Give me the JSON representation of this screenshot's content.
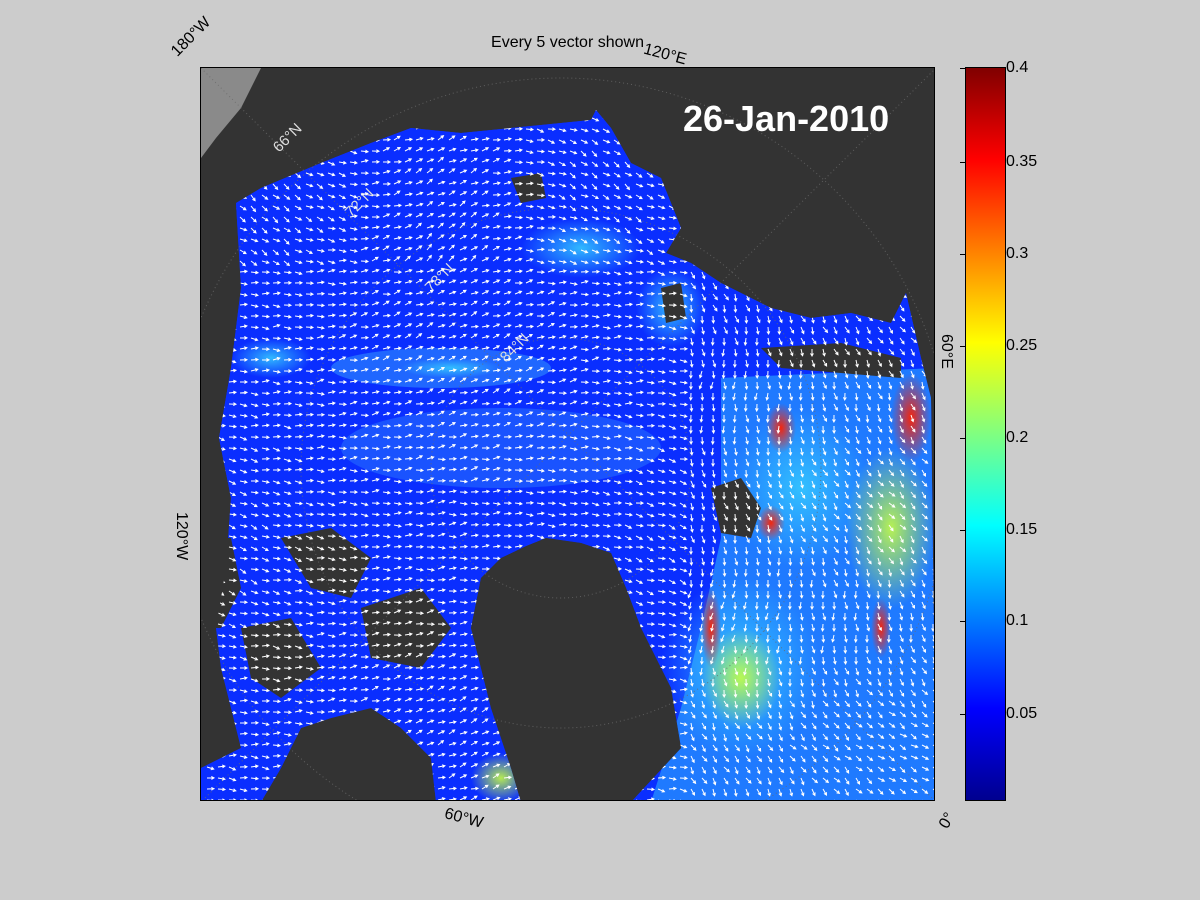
{
  "title": "Every 5 vector shown",
  "date_stamp": "26-Jan-2010",
  "edge_labels": {
    "top_left": "180°W",
    "top_right": "120°E",
    "right": "60°E",
    "bottom_right": "0°",
    "bottom": "60°W",
    "left": "120°W"
  },
  "grid_labels": [
    "66°N",
    "72°N",
    "78°N",
    "84°N"
  ],
  "colorbar": {
    "min": 0,
    "max": 0.4,
    "ticks": [
      "0.4",
      "0.35",
      "0.3",
      "0.25",
      "0.2",
      "0.15",
      "0.1",
      "0.05"
    ],
    "tick_values": [
      0.4,
      0.35,
      0.3,
      0.25,
      0.2,
      0.15,
      0.1,
      0.05
    ],
    "colormap": "jet"
  },
  "colors": {
    "land": "#333333",
    "ice_low": "#0a2eff",
    "ice_mid": "#1e6eff",
    "vectors": "#ffffff",
    "background": "#cccccc"
  }
}
